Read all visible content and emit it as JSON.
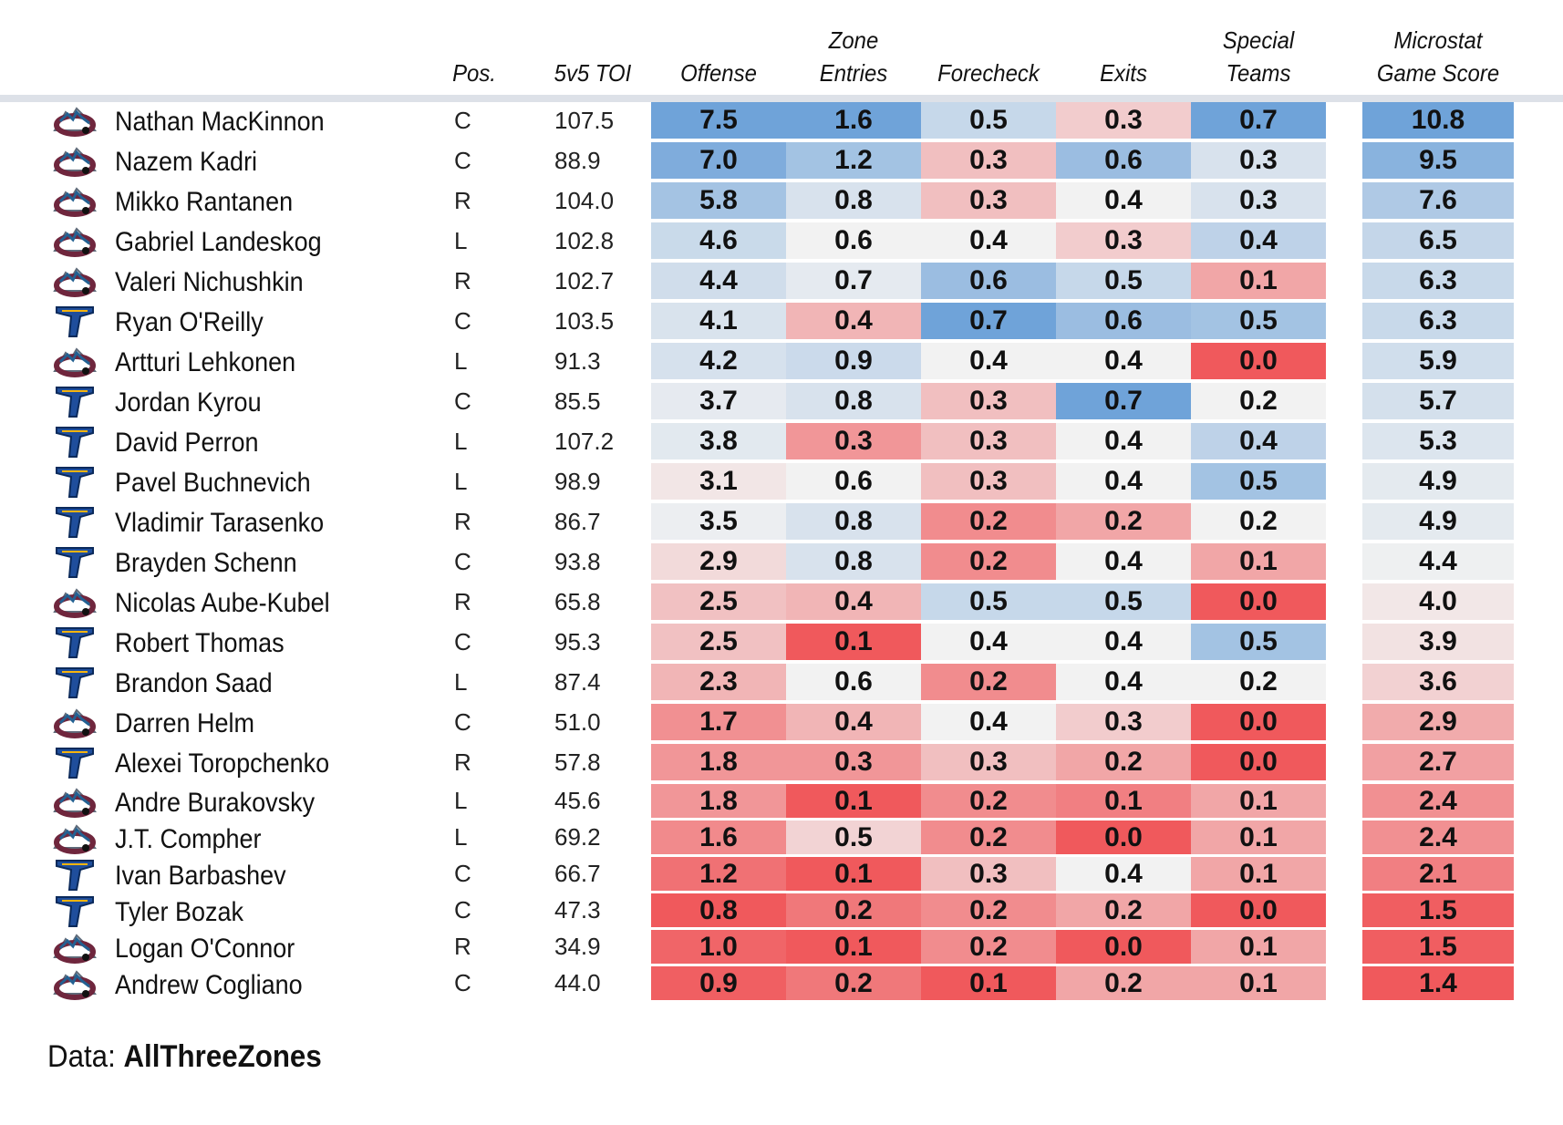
{
  "source": {
    "label": "Data:",
    "name": "AllThreeZones"
  },
  "chart_data": {
    "type": "table",
    "columns": {
      "pos": "Pos.",
      "toi": "5v5 TOI",
      "offense": "Offense",
      "zone_entries": [
        "Zone",
        "Entries"
      ],
      "forecheck": "Forecheck",
      "exits": "Exits",
      "special_teams": [
        "Special",
        "Teams"
      ],
      "game_score": [
        "Microstat",
        "Game Score"
      ]
    },
    "colors": {
      "high": "#6fa3d9",
      "mid": "#f2f2f2",
      "low": "#f0595c"
    },
    "teams": {
      "COL": "colorado-avalanche-logo",
      "STL": "st-louis-blues-logo"
    },
    "rows": [
      {
        "name": "Nathan MacKinnon",
        "team": "COL",
        "pos": "C",
        "toi": "107.5",
        "offense": "7.5",
        "entries": "1.6",
        "forecheck": "0.5",
        "exits": "0.3",
        "special": "0.7",
        "gamescore": "10.8"
      },
      {
        "name": "Nazem Kadri",
        "team": "COL",
        "pos": "C",
        "toi": "88.9",
        "offense": "7.0",
        "entries": "1.2",
        "forecheck": "0.3",
        "exits": "0.6",
        "special": "0.3",
        "gamescore": "9.5"
      },
      {
        "name": "Mikko Rantanen",
        "team": "COL",
        "pos": "R",
        "toi": "104.0",
        "offense": "5.8",
        "entries": "0.8",
        "forecheck": "0.3",
        "exits": "0.4",
        "special": "0.3",
        "gamescore": "7.6"
      },
      {
        "name": "Gabriel Landeskog",
        "team": "COL",
        "pos": "L",
        "toi": "102.8",
        "offense": "4.6",
        "entries": "0.6",
        "forecheck": "0.4",
        "exits": "0.3",
        "special": "0.4",
        "gamescore": "6.5"
      },
      {
        "name": "Valeri Nichushkin",
        "team": "COL",
        "pos": "R",
        "toi": "102.7",
        "offense": "4.4",
        "entries": "0.7",
        "forecheck": "0.6",
        "exits": "0.5",
        "special": "0.1",
        "gamescore": "6.3"
      },
      {
        "name": "Ryan O'Reilly",
        "team": "STL",
        "pos": "C",
        "toi": "103.5",
        "offense": "4.1",
        "entries": "0.4",
        "forecheck": "0.7",
        "exits": "0.6",
        "special": "0.5",
        "gamescore": "6.3"
      },
      {
        "name": "Artturi Lehkonen",
        "team": "COL",
        "pos": "L",
        "toi": "91.3",
        "offense": "4.2",
        "entries": "0.9",
        "forecheck": "0.4",
        "exits": "0.4",
        "special": "0.0",
        "gamescore": "5.9"
      },
      {
        "name": "Jordan Kyrou",
        "team": "STL",
        "pos": "C",
        "toi": "85.5",
        "offense": "3.7",
        "entries": "0.8",
        "forecheck": "0.3",
        "exits": "0.7",
        "special": "0.2",
        "gamescore": "5.7"
      },
      {
        "name": "David Perron",
        "team": "STL",
        "pos": "L",
        "toi": "107.2",
        "offense": "3.8",
        "entries": "0.3",
        "forecheck": "0.3",
        "exits": "0.4",
        "special": "0.4",
        "gamescore": "5.3"
      },
      {
        "name": "Pavel Buchnevich",
        "team": "STL",
        "pos": "L",
        "toi": "98.9",
        "offense": "3.1",
        "entries": "0.6",
        "forecheck": "0.3",
        "exits": "0.4",
        "special": "0.5",
        "gamescore": "4.9"
      },
      {
        "name": "Vladimir Tarasenko",
        "team": "STL",
        "pos": "R",
        "toi": "86.7",
        "offense": "3.5",
        "entries": "0.8",
        "forecheck": "0.2",
        "exits": "0.2",
        "special": "0.2",
        "gamescore": "4.9"
      },
      {
        "name": "Brayden Schenn",
        "team": "STL",
        "pos": "C",
        "toi": "93.8",
        "offense": "2.9",
        "entries": "0.8",
        "forecheck": "0.2",
        "exits": "0.4",
        "special": "0.1",
        "gamescore": "4.4"
      },
      {
        "name": "Nicolas Aube-Kubel",
        "team": "COL",
        "pos": "R",
        "toi": "65.8",
        "offense": "2.5",
        "entries": "0.4",
        "forecheck": "0.5",
        "exits": "0.5",
        "special": "0.0",
        "gamescore": "4.0"
      },
      {
        "name": "Robert Thomas",
        "team": "STL",
        "pos": "C",
        "toi": "95.3",
        "offense": "2.5",
        "entries": "0.1",
        "forecheck": "0.4",
        "exits": "0.4",
        "special": "0.5",
        "gamescore": "3.9"
      },
      {
        "name": "Brandon Saad",
        "team": "STL",
        "pos": "L",
        "toi": "87.4",
        "offense": "2.3",
        "entries": "0.6",
        "forecheck": "0.2",
        "exits": "0.4",
        "special": "0.2",
        "gamescore": "3.6"
      },
      {
        "name": "Darren Helm",
        "team": "COL",
        "pos": "C",
        "toi": "51.0",
        "offense": "1.7",
        "entries": "0.4",
        "forecheck": "0.4",
        "exits": "0.3",
        "special": "0.0",
        "gamescore": "2.9"
      },
      {
        "name": "Alexei Toropchenko",
        "team": "STL",
        "pos": "R",
        "toi": "57.8",
        "offense": "1.8",
        "entries": "0.3",
        "forecheck": "0.3",
        "exits": "0.2",
        "special": "0.0",
        "gamescore": "2.7"
      },
      {
        "name": "Andre Burakovsky",
        "team": "COL",
        "pos": "L",
        "toi": "45.6",
        "offense": "1.8",
        "entries": "0.1",
        "forecheck": "0.2",
        "exits": "0.1",
        "special": "0.1",
        "gamescore": "2.4"
      },
      {
        "name": "J.T. Compher",
        "team": "COL",
        "pos": "L",
        "toi": "69.2",
        "offense": "1.6",
        "entries": "0.5",
        "forecheck": "0.2",
        "exits": "0.0",
        "special": "0.1",
        "gamescore": "2.4"
      },
      {
        "name": "Ivan Barbashev",
        "team": "STL",
        "pos": "C",
        "toi": "66.7",
        "offense": "1.2",
        "entries": "0.1",
        "forecheck": "0.3",
        "exits": "0.4",
        "special": "0.1",
        "gamescore": "2.1"
      },
      {
        "name": "Tyler Bozak",
        "team": "STL",
        "pos": "C",
        "toi": "47.3",
        "offense": "0.8",
        "entries": "0.2",
        "forecheck": "0.2",
        "exits": "0.2",
        "special": "0.0",
        "gamescore": "1.5"
      },
      {
        "name": "Logan O'Connor",
        "team": "COL",
        "pos": "R",
        "toi": "34.9",
        "offense": "1.0",
        "entries": "0.1",
        "forecheck": "0.2",
        "exits": "0.0",
        "special": "0.1",
        "gamescore": "1.5"
      },
      {
        "name": "Andrew Cogliano",
        "team": "COL",
        "pos": "C",
        "toi": "44.0",
        "offense": "0.9",
        "entries": "0.2",
        "forecheck": "0.1",
        "exits": "0.2",
        "special": "0.1",
        "gamescore": "1.4"
      }
    ]
  }
}
